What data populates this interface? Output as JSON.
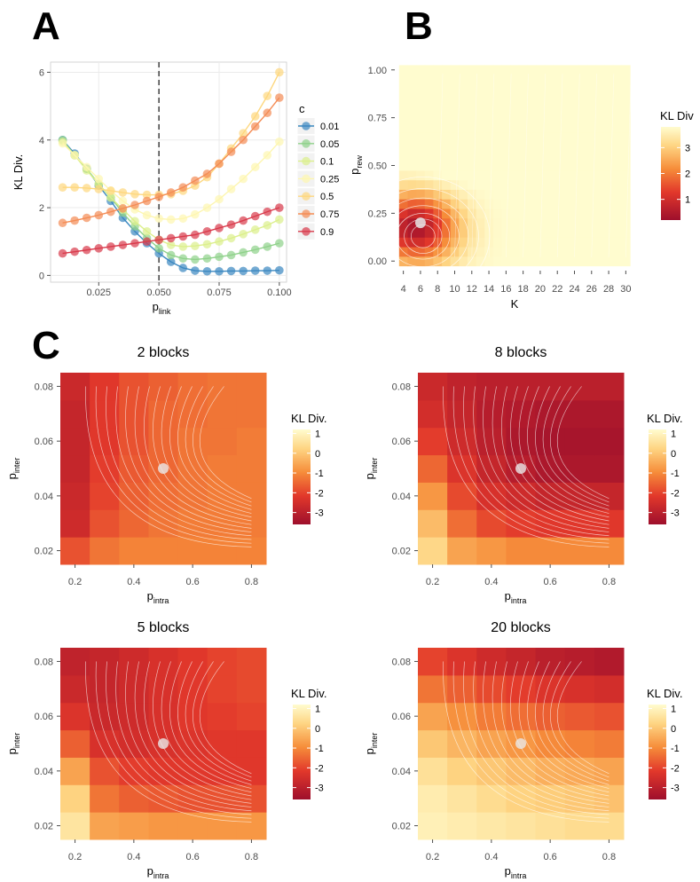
{
  "panel_labels": [
    "A",
    "B",
    "C"
  ],
  "colors": {
    "c_series": [
      "#3a88c0",
      "#8fd18a",
      "#dcef8c",
      "#fdf6b0",
      "#fdd77e",
      "#f48c55",
      "#d93a4b"
    ],
    "heat_low": "#9e0f2c",
    "heat_mid": "#f26b2f",
    "heat_high": "#fffccf",
    "contour": "#ffffff",
    "marker": "#e8e8e8",
    "grid": "#ebebeb",
    "dashed": "#333333"
  },
  "chart_data": [
    {
      "id": "A",
      "type": "line",
      "title": "",
      "xlabel_main": "p",
      "xlabel_sub": "link",
      "ylabel": "KL Div.",
      "xlim": [
        0.005,
        0.103
      ],
      "ylim": [
        -0.2,
        6.3
      ],
      "xticks": [
        0.025,
        0.05,
        0.075,
        0.1
      ],
      "xtick_labels": [
        "0.025",
        "0.050",
        "0.075",
        "0.100"
      ],
      "yticks": [
        0,
        2,
        4,
        6
      ],
      "ytick_labels": [
        "0",
        "2",
        "4",
        "6"
      ],
      "vline": 0.05,
      "legend_title": "c",
      "legend_position": "right",
      "x_start": 0.01,
      "x_step": 0.005,
      "n_points": 19,
      "series": [
        {
          "name": "0.01",
          "values": [
            4.0,
            3.6,
            3.15,
            2.65,
            2.2,
            1.7,
            1.3,
            0.95,
            0.65,
            0.4,
            0.22,
            0.14,
            0.12,
            0.12,
            0.13,
            0.13,
            0.14,
            0.14,
            0.15
          ]
        },
        {
          "name": "0.05",
          "values": [
            4.0,
            3.55,
            3.15,
            2.7,
            2.3,
            1.85,
            1.45,
            1.1,
            0.8,
            0.6,
            0.5,
            0.47,
            0.5,
            0.55,
            0.6,
            0.68,
            0.76,
            0.85,
            0.95
          ]
        },
        {
          "name": "0.1",
          "values": [
            3.95,
            3.55,
            3.1,
            2.7,
            2.3,
            1.95,
            1.6,
            1.3,
            1.05,
            0.9,
            0.85,
            0.87,
            0.92,
            1.0,
            1.1,
            1.22,
            1.35,
            1.48,
            1.65
          ]
        },
        {
          "name": "0.25",
          "values": [
            3.9,
            3.55,
            3.2,
            2.85,
            2.5,
            2.2,
            1.95,
            1.78,
            1.68,
            1.65,
            1.68,
            1.8,
            2.0,
            2.25,
            2.55,
            2.85,
            3.2,
            3.55,
            3.95
          ]
        },
        {
          "name": "0.5",
          "values": [
            2.6,
            2.6,
            2.58,
            2.55,
            2.5,
            2.45,
            2.4,
            2.38,
            2.38,
            2.4,
            2.5,
            2.65,
            2.9,
            3.3,
            3.75,
            4.2,
            4.7,
            5.3,
            6.0
          ]
        },
        {
          "name": "0.75",
          "values": [
            1.55,
            1.62,
            1.7,
            1.78,
            1.88,
            1.98,
            2.08,
            2.2,
            2.32,
            2.45,
            2.6,
            2.8,
            3.0,
            3.3,
            3.65,
            4.0,
            4.4,
            4.8,
            5.25
          ]
        },
        {
          "name": "0.9",
          "values": [
            0.65,
            0.7,
            0.75,
            0.8,
            0.85,
            0.9,
            0.95,
            1.0,
            1.05,
            1.1,
            1.15,
            1.2,
            1.3,
            1.4,
            1.5,
            1.62,
            1.75,
            1.88,
            2.0
          ]
        }
      ]
    },
    {
      "id": "B",
      "type": "heatmap",
      "title": "",
      "xlabel": "K",
      "ylabel_main": "p",
      "ylabel_sub": "rew",
      "xlim": [
        3,
        31
      ],
      "ylim": [
        -0.05,
        1.05
      ],
      "xticks": [
        4,
        6,
        8,
        10,
        12,
        14,
        16,
        18,
        20,
        22,
        24,
        26,
        28,
        30
      ],
      "xtick_labels": [
        "4",
        "6",
        "8",
        "10",
        "12",
        "14",
        "16",
        "18",
        "20",
        "22",
        "24",
        "26",
        "28",
        "30"
      ],
      "yticks": [
        0,
        0.25,
        0.5,
        0.75,
        1.0
      ],
      "ytick_labels": [
        "0.00",
        "0.25",
        "0.50",
        "0.75",
        "1.00"
      ],
      "legend_title": "KL Div",
      "legend_position": "right",
      "colorbar_ticks": [
        1,
        2,
        3
      ],
      "colorbar_tick_labels": [
        "1",
        "2",
        "3"
      ],
      "color_range": [
        0.2,
        3.8
      ],
      "marker": {
        "x": 6,
        "y": 0.2
      },
      "grid_x_start": 4,
      "grid_x_step": 1,
      "grid_nx": 27,
      "grid_y_start": 0,
      "grid_y_step": 0.05,
      "grid_ny": 21
    },
    {
      "id": "C1",
      "type": "heatmap",
      "title": "2 blocks",
      "xlabel_main": "p",
      "xlabel_sub": "intra",
      "ylabel_main": "p",
      "ylabel_sub": "inter",
      "xlim": [
        0.15,
        0.85
      ],
      "ylim": [
        0.015,
        0.085
      ],
      "xticks": [
        0.2,
        0.4,
        0.6,
        0.8
      ],
      "xtick_labels": [
        "0.2",
        "0.4",
        "0.6",
        "0.8"
      ],
      "yticks": [
        0.02,
        0.04,
        0.06,
        0.08
      ],
      "ytick_labels": [
        "0.02",
        "0.04",
        "0.06",
        "0.08"
      ],
      "legend_title": "KL Div.",
      "colorbar_ticks": [
        1,
        0,
        -1,
        -2,
        -3
      ],
      "colorbar_tick_labels": [
        "1",
        "0",
        "-1",
        "-2",
        "-3"
      ],
      "color_range": [
        -3.6,
        1.2
      ],
      "marker": {
        "x": 0.5,
        "y": 0.05
      },
      "x_cells": [
        0.15,
        0.25,
        0.35,
        0.45,
        0.55,
        0.65,
        0.75,
        0.85
      ],
      "y_cells": [
        0.015,
        0.025,
        0.035,
        0.045,
        0.055,
        0.065,
        0.075,
        0.085
      ],
      "values": [
        [
          -1.8,
          -1.3,
          -1.1,
          -1.1,
          -1.1,
          -1.1,
          -1.1
        ],
        [
          -2.6,
          -1.8,
          -1.5,
          -1.3,
          -1.2,
          -1.2,
          -1.2
        ],
        [
          -2.7,
          -2.0,
          -1.6,
          -1.4,
          -1.3,
          -1.2,
          -1.2
        ],
        [
          -2.8,
          -2.1,
          -1.7,
          -1.5,
          -1.3,
          -1.2,
          -1.2
        ],
        [
          -2.8,
          -2.2,
          -1.8,
          -1.5,
          -1.3,
          -1.3,
          -1.2
        ],
        [
          -2.8,
          -2.2,
          -1.8,
          -1.5,
          -1.4,
          -1.3,
          -1.3
        ],
        [
          -2.7,
          -2.2,
          -1.8,
          -1.6,
          -1.4,
          -1.3,
          -1.3
        ]
      ]
    },
    {
      "id": "C2",
      "type": "heatmap",
      "title": "8 blocks",
      "xlabel_main": "p",
      "xlabel_sub": "intra",
      "ylabel_main": "p",
      "ylabel_sub": "inter",
      "xlim": [
        0.15,
        0.85
      ],
      "ylim": [
        0.015,
        0.085
      ],
      "xticks": [
        0.2,
        0.4,
        0.6,
        0.8
      ],
      "xtick_labels": [
        "0.2",
        "0.4",
        "0.6",
        "0.8"
      ],
      "yticks": [
        0.02,
        0.04,
        0.06,
        0.08
      ],
      "ytick_labels": [
        "0.02",
        "0.04",
        "0.06",
        "0.08"
      ],
      "legend_title": "KL Div.",
      "colorbar_ticks": [
        1,
        0,
        -1,
        -2,
        -3
      ],
      "colorbar_tick_labels": [
        "1",
        "0",
        "-1",
        "-2",
        "-3"
      ],
      "color_range": [
        -3.6,
        1.2
      ],
      "marker": {
        "x": 0.5,
        "y": 0.05
      },
      "x_cells": [
        0.15,
        0.25,
        0.35,
        0.45,
        0.55,
        0.65,
        0.75,
        0.85
      ],
      "y_cells": [
        0.015,
        0.025,
        0.035,
        0.045,
        0.055,
        0.065,
        0.075,
        0.085
      ],
      "values": [
        [
          0.3,
          -0.6,
          -0.8,
          -1.0,
          -1.0,
          -1.0,
          -1.0
        ],
        [
          -0.2,
          -1.4,
          -1.9,
          -2.1,
          -2.2,
          -2.2,
          -2.2
        ],
        [
          -0.8,
          -1.9,
          -2.4,
          -2.6,
          -2.8,
          -2.8,
          -2.8
        ],
        [
          -1.5,
          -2.3,
          -2.8,
          -3.1,
          -3.3,
          -3.3,
          -3.3
        ],
        [
          -2.1,
          -2.6,
          -3.0,
          -3.3,
          -3.4,
          -3.4,
          -3.4
        ],
        [
          -2.5,
          -2.8,
          -3.1,
          -3.2,
          -3.3,
          -3.3,
          -3.3
        ],
        [
          -2.7,
          -2.9,
          -3.0,
          -3.0,
          -3.0,
          -3.0,
          -3.0
        ]
      ]
    },
    {
      "id": "C3",
      "type": "heatmap",
      "title": "5 blocks",
      "xlabel_main": "p",
      "xlabel_sub": "intra",
      "ylabel_main": "p",
      "ylabel_sub": "inter",
      "xlim": [
        0.15,
        0.85
      ],
      "ylim": [
        0.015,
        0.085
      ],
      "xticks": [
        0.2,
        0.4,
        0.6,
        0.8
      ],
      "xtick_labels": [
        "0.2",
        "0.4",
        "0.6",
        "0.8"
      ],
      "yticks": [
        0.02,
        0.04,
        0.06,
        0.08
      ],
      "ytick_labels": [
        "0.02",
        "0.04",
        "0.06",
        "0.08"
      ],
      "legend_title": "KL Div.",
      "colorbar_ticks": [
        1,
        0,
        -1,
        -2,
        -3
      ],
      "colorbar_tick_labels": [
        "1",
        "0",
        "-1",
        "-2",
        "-3"
      ],
      "color_range": [
        -3.6,
        1.2
      ],
      "marker": {
        "x": 0.5,
        "y": 0.05
      },
      "x_cells": [
        0.15,
        0.25,
        0.35,
        0.45,
        0.55,
        0.65,
        0.75,
        0.85
      ],
      "y_cells": [
        0.015,
        0.025,
        0.035,
        0.045,
        0.055,
        0.065,
        0.075,
        0.085
      ],
      "values": [
        [
          0.6,
          -0.6,
          -0.7,
          -0.8,
          -0.8,
          -0.8,
          -0.8
        ],
        [
          0.2,
          -1.3,
          -1.6,
          -1.7,
          -1.8,
          -1.8,
          -1.8
        ],
        [
          -0.6,
          -1.8,
          -2.1,
          -2.2,
          -2.2,
          -2.2,
          -2.2
        ],
        [
          -1.6,
          -2.4,
          -2.5,
          -2.4,
          -2.3,
          -2.2,
          -2.2
        ],
        [
          -2.3,
          -2.7,
          -2.6,
          -2.4,
          -2.2,
          -2.1,
          -2.0
        ],
        [
          -2.7,
          -2.8,
          -2.6,
          -2.4,
          -2.2,
          -2.0,
          -1.9
        ],
        [
          -2.9,
          -2.8,
          -2.6,
          -2.4,
          -2.2,
          -2.0,
          -1.9
        ]
      ]
    },
    {
      "id": "C4",
      "type": "heatmap",
      "title": "20 blocks",
      "xlabel_main": "p",
      "xlabel_sub": "intra",
      "ylabel_main": "p",
      "ylabel_sub": "inter",
      "xlim": [
        0.15,
        0.85
      ],
      "ylim": [
        0.015,
        0.085
      ],
      "xticks": [
        0.2,
        0.4,
        0.6,
        0.8
      ],
      "xtick_labels": [
        "0.2",
        "0.4",
        "0.6",
        "0.8"
      ],
      "yticks": [
        0.02,
        0.04,
        0.06,
        0.08
      ],
      "ytick_labels": [
        "0.02",
        "0.04",
        "0.06",
        "0.08"
      ],
      "legend_title": "KL Div.",
      "colorbar_ticks": [
        1,
        0,
        -1,
        -2,
        -3
      ],
      "colorbar_tick_labels": [
        "1",
        "0",
        "-1",
        "-2",
        "-3"
      ],
      "color_range": [
        -3.6,
        1.2
      ],
      "marker": {
        "x": 0.5,
        "y": 0.05
      },
      "x_cells": [
        0.15,
        0.25,
        0.35,
        0.45,
        0.55,
        0.65,
        0.75,
        0.85
      ],
      "y_cells": [
        0.015,
        0.025,
        0.035,
        0.045,
        0.055,
        0.065,
        0.075,
        0.085
      ],
      "values": [
        [
          0.9,
          0.8,
          0.7,
          0.6,
          0.5,
          0.4,
          0.4
        ],
        [
          0.8,
          0.6,
          0.4,
          0.2,
          0.1,
          0.0,
          -0.1
        ],
        [
          0.5,
          0.2,
          0.0,
          -0.2,
          -0.4,
          -0.5,
          -0.6
        ],
        [
          0.0,
          -0.3,
          -0.6,
          -0.8,
          -1.0,
          -1.1,
          -1.2
        ],
        [
          -0.6,
          -0.9,
          -1.2,
          -1.4,
          -1.6,
          -1.7,
          -1.8
        ],
        [
          -1.3,
          -1.6,
          -1.9,
          -2.1,
          -2.3,
          -2.4,
          -2.5
        ],
        [
          -2.0,
          -2.3,
          -2.6,
          -2.8,
          -3.0,
          -3.1,
          -3.2
        ]
      ]
    }
  ]
}
